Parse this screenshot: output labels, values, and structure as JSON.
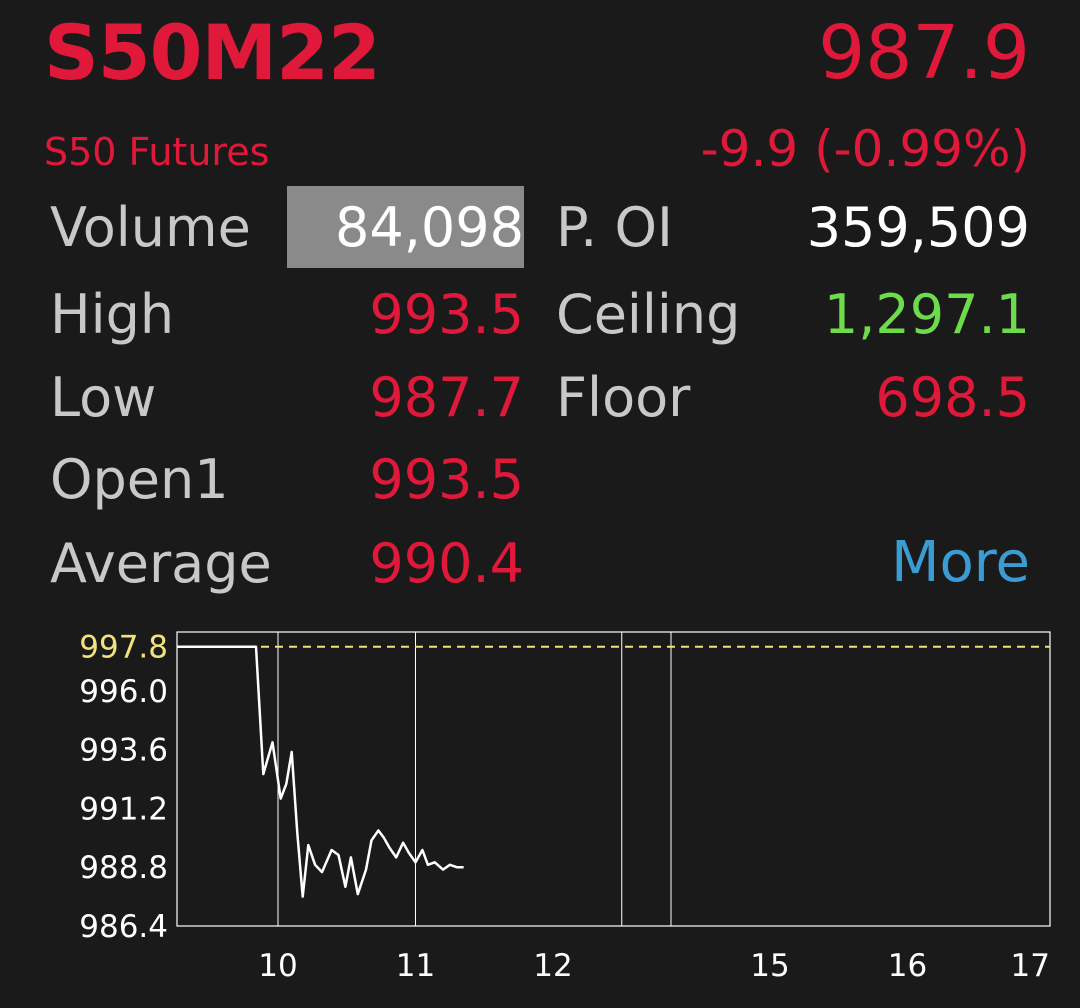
{
  "header": {
    "symbol": "S50M22",
    "name": "S50 Futures",
    "price": "987.9",
    "change": "-9.9 (-0.99%)"
  },
  "stats": {
    "volume": {
      "label": "Volume",
      "value": "84,098"
    },
    "p_oi": {
      "label": "P. OI",
      "value": "359,509"
    },
    "high": {
      "label": "High",
      "value": "993.5"
    },
    "ceiling": {
      "label": "Ceiling",
      "value": "1,297.1"
    },
    "low": {
      "label": "Low",
      "value": "987.7"
    },
    "floor": {
      "label": "Floor",
      "value": "698.5"
    },
    "open1": {
      "label": "Open1",
      "value": "993.5"
    },
    "average": {
      "label": "Average",
      "value": "990.4"
    },
    "more_label": "More"
  },
  "colors": {
    "up": "#6ddc4a",
    "down": "#e0193a",
    "neutral": "#ffffff",
    "reference_line": "#f2e27a",
    "link": "#3b9bd3"
  },
  "chart_data": {
    "type": "line",
    "y_ticks": [
      "997.8",
      "996.0",
      "993.6",
      "991.2",
      "988.8",
      "986.4"
    ],
    "x_ticks": [
      "10",
      "11",
      "12",
      "15",
      "16",
      "17"
    ],
    "ylim": [
      986.4,
      998.4
    ],
    "reference_line": 997.8,
    "series": [
      {
        "x": [
          9.45,
          9.88,
          9.92,
          9.97,
          10.02,
          10.06,
          10.1,
          10.14,
          10.18,
          10.22,
          10.27,
          10.32,
          10.39,
          10.44,
          10.49,
          10.53,
          10.58,
          10.64,
          10.68,
          10.73,
          10.77,
          10.81,
          10.86,
          10.91,
          10.95,
          11.0,
          11.05,
          11.09,
          11.14,
          11.2,
          11.25,
          11.3,
          11.35
        ],
        "y": [
          997.8,
          997.8,
          992.6,
          993.9,
          991.6,
          992.2,
          993.5,
          990.2,
          987.6,
          989.7,
          988.9,
          988.6,
          989.5,
          989.3,
          988.0,
          989.2,
          987.7,
          988.7,
          989.9,
          990.3,
          990.0,
          989.6,
          989.2,
          989.8,
          989.4,
          989.0,
          989.5,
          988.9,
          989.0,
          988.7,
          988.9,
          988.8,
          988.8
        ]
      }
    ]
  }
}
